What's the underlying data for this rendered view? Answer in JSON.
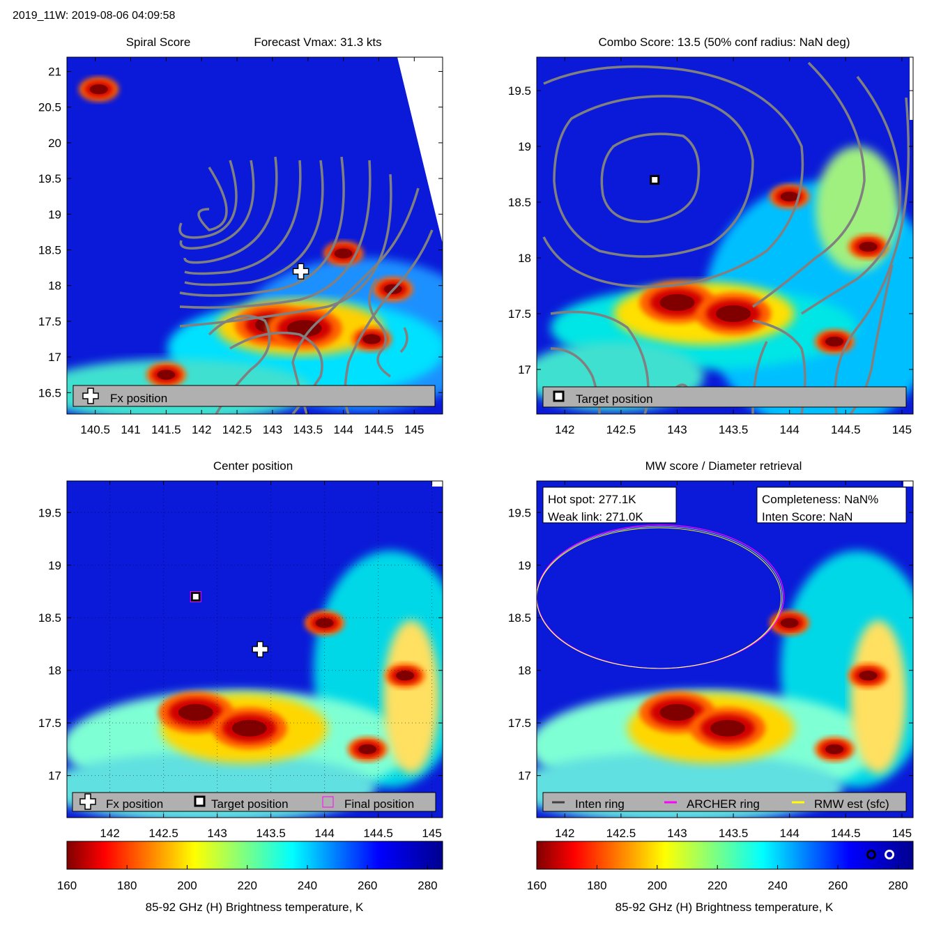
{
  "header": "2019_11W: 2019-08-06 04:09:58",
  "colormap": {
    "stops": [
      "#800000",
      "#ff0000",
      "#ffff00",
      "#00ffff",
      "#0000ff",
      "#00008f"
    ],
    "ticks": [
      160,
      180,
      200,
      220,
      240,
      260,
      280
    ],
    "range": [
      160,
      285
    ],
    "label": "85-92 GHz (H) Brightness temperature, K"
  },
  "chart_data": [
    {
      "type": "heatmap",
      "panel": "spiral",
      "title_left": "Spiral Score",
      "title_right": "Forecast Vmax: 31.3 kts",
      "xlim": [
        140.1,
        145.4
      ],
      "ylim": [
        16.2,
        21.2
      ],
      "xticks": [
        "140.5",
        "141",
        "141.5",
        "142",
        "142.5",
        "143",
        "143.5",
        "144",
        "144.5",
        "145"
      ],
      "yticks": [
        "16.5",
        "17",
        "17.5",
        "18",
        "18.5",
        "19",
        "19.5",
        "20",
        "20.5",
        "21"
      ],
      "fx_position": [
        143.4,
        18.2
      ],
      "cold_cores": [
        [
          143.0,
          17.45
        ],
        [
          143.45,
          17.4
        ],
        [
          144.0,
          18.45
        ],
        [
          144.7,
          17.95
        ],
        [
          144.4,
          17.25
        ],
        [
          141.5,
          16.75
        ],
        [
          140.55,
          20.75
        ]
      ],
      "legend": [
        "Fx position"
      ]
    },
    {
      "type": "heatmap",
      "panel": "combo",
      "title": "Combo Score: 13.5  (50% conf radius: NaN deg)",
      "xlim": [
        141.75,
        145.1
      ],
      "ylim": [
        16.6,
        19.8
      ],
      "xticks": [
        "142",
        "142.5",
        "143",
        "143.5",
        "144",
        "144.5",
        "145"
      ],
      "yticks": [
        "17",
        "17.5",
        "18",
        "18.5",
        "19",
        "19.5"
      ],
      "target_position": [
        142.8,
        18.7
      ],
      "cold_cores": [
        [
          143.0,
          17.6
        ],
        [
          143.5,
          17.5
        ],
        [
          144.0,
          18.55
        ],
        [
          144.7,
          18.1
        ],
        [
          144.4,
          17.25
        ]
      ],
      "legend": [
        "Target position"
      ]
    },
    {
      "type": "heatmap",
      "panel": "center",
      "title": "Center position",
      "xlim": [
        141.6,
        145.1
      ],
      "ylim": [
        16.6,
        19.8
      ],
      "xticks": [
        "142",
        "142.5",
        "143",
        "143.5",
        "144",
        "144.5",
        "145"
      ],
      "yticks": [
        "17",
        "17.5",
        "18",
        "18.5",
        "19",
        "19.5"
      ],
      "fx_position": [
        143.4,
        18.2
      ],
      "target_position": [
        142.8,
        18.7
      ],
      "cold_cores": [
        [
          142.8,
          17.6
        ],
        [
          143.3,
          17.45
        ],
        [
          144.0,
          18.45
        ],
        [
          144.75,
          17.95
        ],
        [
          144.4,
          17.25
        ]
      ],
      "legend": [
        "Fx position",
        "Target position",
        "Final position"
      ]
    },
    {
      "type": "heatmap",
      "panel": "mw",
      "title": "MW score / Diameter retrieval",
      "xlim": [
        141.75,
        145.1
      ],
      "ylim": [
        16.6,
        19.8
      ],
      "xticks": [
        "142",
        "142.5",
        "143",
        "143.5",
        "144",
        "144.5",
        "145"
      ],
      "yticks": [
        "17",
        "17.5",
        "18",
        "18.5",
        "19",
        "19.5"
      ],
      "ring_center": [
        142.85,
        18.7
      ],
      "ring_radius_deg": 1.1,
      "cold_cores": [
        [
          143.0,
          17.6
        ],
        [
          143.45,
          17.45
        ],
        [
          144.0,
          18.45
        ],
        [
          144.7,
          17.95
        ],
        [
          144.4,
          17.25
        ]
      ],
      "info_left": [
        "Hot spot: 277.1K",
        "Weak link: 271.0K"
      ],
      "info_right": [
        "Completeness: NaN%",
        "Inten Score: NaN"
      ],
      "legend": [
        "Inten ring",
        "ARCHER ring",
        "RMW est (sfc)"
      ]
    }
  ]
}
